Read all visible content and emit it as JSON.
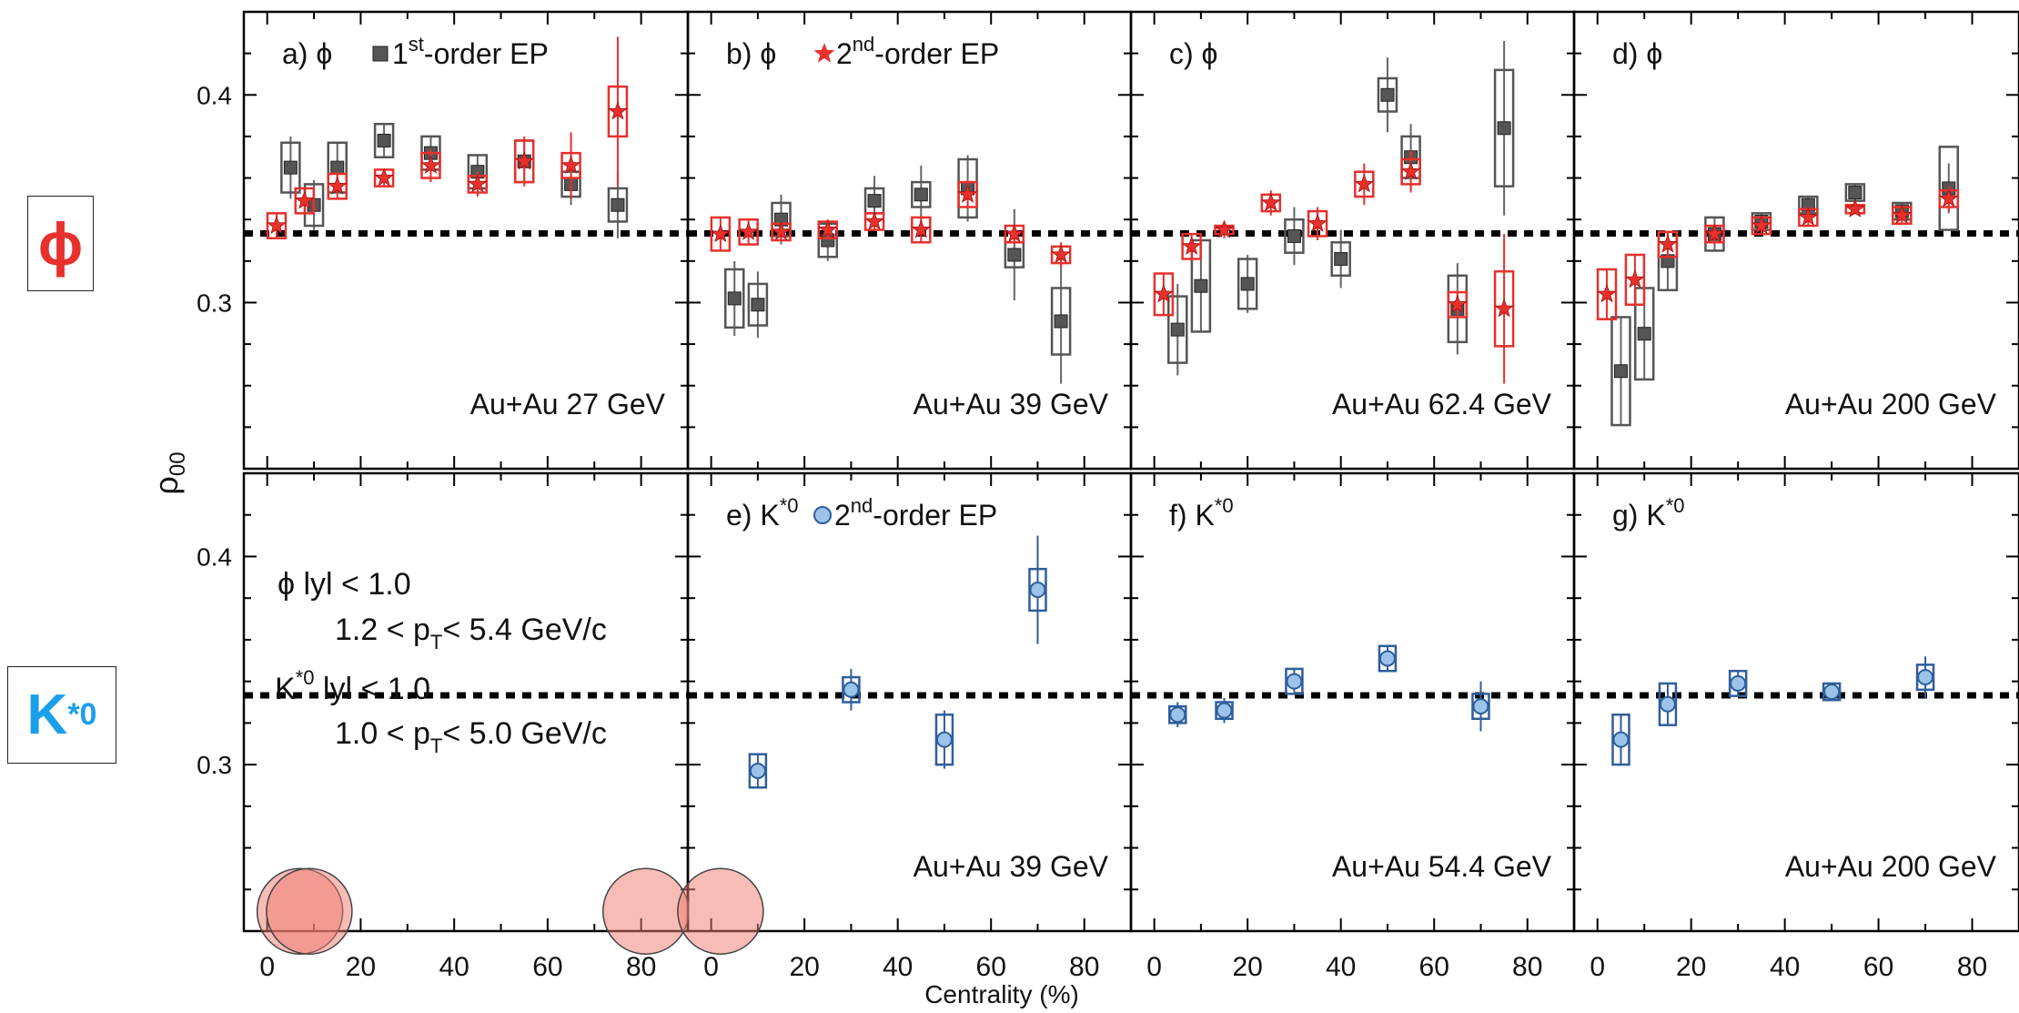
{
  "colors": {
    "first_order": "#555555",
    "first_order_box": "#555555",
    "second_order_phi": "#e8302c",
    "kstar": "#9cc4ea",
    "kstar_edge": "#2e5e9c",
    "reference_line": "#000000"
  },
  "side_labels": {
    "phi": "ϕ",
    "phi_color": "#e8302c",
    "kstar_base": "K",
    "kstar_sup": "*0",
    "kstar_color": "#1aa0e8"
  },
  "chart_data": {
    "type": "scatter",
    "ylabel_base": "ρ",
    "ylabel_sub": "00",
    "xlabel": "Centrality (%)",
    "xlim": [
      -5,
      90
    ],
    "ylim": [
      0.22,
      0.44
    ],
    "yticks": [
      "0.3",
      "0.4"
    ],
    "xtick_labels": [
      "0",
      "20",
      "40",
      "60",
      "80"
    ],
    "reference_line_y": 0.3333,
    "grid": false,
    "legend": {
      "first_order": "1st-order EP",
      "second_order": "2nd-order EP"
    },
    "panels": [
      {
        "id": "a",
        "row": 0,
        "col": 0,
        "title_letter": "a)",
        "particle": "ϕ",
        "legend_marker": "square",
        "legend_prefix": "1",
        "legend_sup": "st",
        "legend_suffix": "-order EP",
        "energy": "Au+Au 27 GeV",
        "series": [
          {
            "marker": "square",
            "points": [
              [
                5,
                0.365,
                0.012,
                0.015
              ],
              [
                10,
                0.347,
                0.01,
                0.012
              ],
              [
                15,
                0.365,
                0.012,
                0.012
              ],
              [
                25,
                0.378,
                0.008,
                0.008
              ],
              [
                35,
                0.372,
                0.008,
                0.008
              ],
              [
                45,
                0.363,
                0.008,
                0.008
              ],
              [
                55,
                0.368,
                0.01,
                0.01
              ],
              [
                65,
                0.357,
                0.006,
                0.01
              ],
              [
                75,
                0.347,
                0.008,
                0.016
              ]
            ]
          },
          {
            "marker": "star",
            "points": [
              [
                2,
                0.337,
                0.006,
                0.006
              ],
              [
                8,
                0.349,
                0.006,
                0.006
              ],
              [
                15,
                0.356,
                0.006,
                0.006
              ],
              [
                25,
                0.36,
                0.004,
                0.004
              ],
              [
                35,
                0.366,
                0.006,
                0.008
              ],
              [
                45,
                0.357,
                0.004,
                0.006
              ],
              [
                55,
                0.368,
                0.01,
                0.012
              ],
              [
                65,
                0.366,
                0.006,
                0.016
              ],
              [
                75,
                0.392,
                0.012,
                0.036
              ]
            ]
          }
        ]
      },
      {
        "id": "b",
        "row": 0,
        "col": 1,
        "title_letter": "b)",
        "particle": "ϕ",
        "legend_marker": "star",
        "legend_prefix": "2",
        "legend_sup": "nd",
        "legend_suffix": "-order EP",
        "energy": "Au+Au 39 GeV",
        "series": [
          {
            "marker": "square",
            "points": [
              [
                5,
                0.302,
                0.014,
                0.018
              ],
              [
                10,
                0.299,
                0.01,
                0.016
              ],
              [
                15,
                0.34,
                0.008,
                0.012
              ],
              [
                25,
                0.33,
                0.008,
                0.01
              ],
              [
                35,
                0.349,
                0.006,
                0.012
              ],
              [
                45,
                0.352,
                0.006,
                0.014
              ],
              [
                55,
                0.355,
                0.014,
                0.016
              ],
              [
                65,
                0.323,
                0.006,
                0.022
              ],
              [
                75,
                0.291,
                0.016,
                0.03
              ]
            ]
          },
          {
            "marker": "star",
            "points": [
              [
                2,
                0.333,
                0.008,
                0.008
              ],
              [
                8,
                0.334,
                0.006,
                0.006
              ],
              [
                15,
                0.334,
                0.004,
                0.004
              ],
              [
                25,
                0.335,
                0.004,
                0.004
              ],
              [
                35,
                0.339,
                0.004,
                0.004
              ],
              [
                45,
                0.335,
                0.006,
                0.006
              ],
              [
                55,
                0.352,
                0.006,
                0.006
              ],
              [
                65,
                0.333,
                0.004,
                0.004
              ],
              [
                75,
                0.323,
                0.004,
                0.006
              ]
            ]
          }
        ]
      },
      {
        "id": "c",
        "row": 0,
        "col": 2,
        "title_letter": "c)",
        "particle": "ϕ",
        "legend_marker": "none",
        "legend_prefix": "",
        "legend_sup": "",
        "legend_suffix": "",
        "energy": "Au+Au 62.4 GeV",
        "series": [
          {
            "marker": "square",
            "points": [
              [
                5,
                0.287,
                0.016,
                0.022
              ],
              [
                10,
                0.308,
                0.022,
                0.022
              ],
              [
                20,
                0.309,
                0.012,
                0.014
              ],
              [
                30,
                0.332,
                0.008,
                0.014
              ],
              [
                40,
                0.321,
                0.008,
                0.014
              ],
              [
                50,
                0.4,
                0.008,
                0.018
              ],
              [
                55,
                0.37,
                0.01,
                0.016
              ],
              [
                65,
                0.297,
                0.016,
                0.022
              ],
              [
                75,
                0.384,
                0.028,
                0.042
              ]
            ]
          },
          {
            "marker": "star",
            "points": [
              [
                2,
                0.304,
                0.01,
                0.01
              ],
              [
                8,
                0.327,
                0.006,
                0.006
              ],
              [
                15,
                0.335,
                0.002,
                0.004
              ],
              [
                25,
                0.348,
                0.004,
                0.006
              ],
              [
                35,
                0.338,
                0.006,
                0.008
              ],
              [
                45,
                0.357,
                0.006,
                0.01
              ],
              [
                55,
                0.363,
                0.006,
                0.01
              ],
              [
                65,
                0.299,
                0.006,
                0.006
              ],
              [
                75,
                0.297,
                0.018,
                0.036
              ]
            ]
          }
        ]
      },
      {
        "id": "d",
        "row": 0,
        "col": 3,
        "title_letter": "d)",
        "particle": "ϕ",
        "legend_marker": "none",
        "legend_prefix": "",
        "legend_sup": "",
        "legend_suffix": "",
        "energy": "Au+Au 200 GeV",
        "series": [
          {
            "marker": "square",
            "points": [
              [
                5,
                0.267,
                0.026,
                0.026
              ],
              [
                10,
                0.285,
                0.022,
                0.022
              ],
              [
                15,
                0.32,
                0.014,
                0.014
              ],
              [
                25,
                0.333,
                0.008,
                0.008
              ],
              [
                35,
                0.339,
                0.004,
                0.004
              ],
              [
                45,
                0.347,
                0.004,
                0.004
              ],
              [
                55,
                0.353,
                0.004,
                0.004
              ],
              [
                65,
                0.344,
                0.004,
                0.004
              ],
              [
                75,
                0.355,
                0.02,
                0.012
              ]
            ]
          },
          {
            "marker": "star",
            "points": [
              [
                2,
                0.304,
                0.012,
                0.012
              ],
              [
                8,
                0.311,
                0.012,
                0.012
              ],
              [
                15,
                0.328,
                0.006,
                0.006
              ],
              [
                25,
                0.333,
                0.004,
                0.004
              ],
              [
                35,
                0.337,
                0.004,
                0.004
              ],
              [
                45,
                0.341,
                0.004,
                0.004
              ],
              [
                55,
                0.345,
                0.002,
                0.002
              ],
              [
                65,
                0.342,
                0.004,
                0.004
              ],
              [
                75,
                0.35,
                0.004,
                0.006
              ]
            ]
          }
        ]
      },
      {
        "id": "e",
        "row": 1,
        "col": 1,
        "title_letter": "e)",
        "particle_base": "K",
        "particle_sup": "*0",
        "legend_marker": "circle",
        "legend_prefix": "2",
        "legend_sup": "nd",
        "legend_suffix": "-order EP",
        "energy": "Au+Au 39 GeV",
        "series": [
          {
            "marker": "circle",
            "points": [
              [
                10,
                0.297,
                0.008,
                0.008
              ],
              [
                30,
                0.336,
                0.006,
                0.01
              ],
              [
                50,
                0.312,
                0.012,
                0.014
              ],
              [
                70,
                0.384,
                0.01,
                0.026
              ]
            ]
          }
        ]
      },
      {
        "id": "f",
        "row": 1,
        "col": 2,
        "title_letter": "f)",
        "particle_base": "K",
        "particle_sup": "*0",
        "legend_marker": "none",
        "energy": "Au+Au 54.4 GeV",
        "series": [
          {
            "marker": "circle",
            "points": [
              [
                5,
                0.324,
                0.004,
                0.006
              ],
              [
                15,
                0.326,
                0.004,
                0.006
              ],
              [
                30,
                0.34,
                0.006,
                0.006
              ],
              [
                50,
                0.351,
                0.006,
                0.006
              ],
              [
                70,
                0.328,
                0.006,
                0.012
              ]
            ]
          }
        ]
      },
      {
        "id": "g",
        "row": 1,
        "col": 3,
        "title_letter": "g)",
        "particle_base": "K",
        "particle_sup": "*0",
        "legend_marker": "none",
        "energy": "Au+Au 200 GeV",
        "series": [
          {
            "marker": "circle",
            "points": [
              [
                5,
                0.312,
                0.012,
                0.012
              ],
              [
                15,
                0.329,
                0.01,
                0.01
              ],
              [
                30,
                0.339,
                0.006,
                0.006
              ],
              [
                50,
                0.335,
                0.004,
                0.004
              ],
              [
                70,
                0.342,
                0.006,
                0.01
              ]
            ]
          }
        ]
      }
    ],
    "cuts_panel": {
      "phi_symbol": "ϕ",
      "phi_rapidity": "lyl < 1.0",
      "phi_pt_pre": "1.2 < p",
      "phi_pt_sub": "T",
      "phi_pt_post": "< 5.4 GeV/c",
      "k_base": "K",
      "k_sup": "*0",
      "k_rapidity": "lyl < 1.0",
      "k_pt_pre": "1.0 < p",
      "k_pt_sub": "T",
      "k_pt_post": "< 5.0 GeV/c"
    },
    "highlight_circles": [
      {
        "panel_col": 0,
        "cx": 7,
        "cy": 0.2295
      },
      {
        "panel_col": 0,
        "cx": 9,
        "cy": 0.2295
      },
      {
        "panel_col": 0,
        "cx": 81,
        "cy": 0.2295
      },
      {
        "panel_col": 1,
        "cx": 2,
        "cy": 0.2295
      }
    ]
  }
}
